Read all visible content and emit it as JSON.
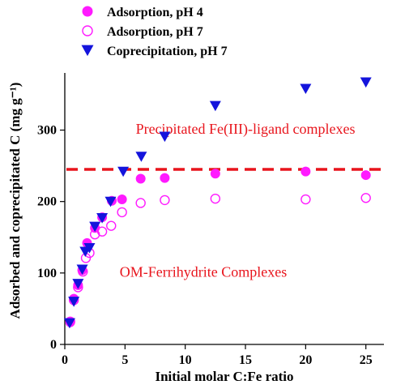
{
  "chart_data": {
    "type": "scatter",
    "xlabel": "Initial molar C:Fe ratio",
    "ylabel": "Adsorbed and coprecipitated C (mg g⁻¹)",
    "xlim": [
      0,
      26.5
    ],
    "ylim": [
      0,
      380
    ],
    "x_ticks": [
      0,
      5,
      10,
      15,
      20,
      25
    ],
    "y_ticks": [
      0,
      100,
      200,
      300
    ],
    "grid": false,
    "legend_position": "top-left",
    "series": [
      {
        "name": "Adsorption, pH 4",
        "marker": "filled-circle",
        "color": "#ff1aff",
        "points": [
          [
            0.45,
            31
          ],
          [
            0.75,
            64
          ],
          [
            1.1,
            83
          ],
          [
            1.45,
            104
          ],
          [
            1.85,
            142
          ],
          [
            2.5,
            163
          ],
          [
            3.1,
            178
          ],
          [
            3.9,
            201
          ],
          [
            4.75,
            203
          ],
          [
            6.3,
            232
          ],
          [
            8.3,
            233
          ],
          [
            12.5,
            239
          ],
          [
            20,
            242
          ],
          [
            25,
            237
          ]
        ]
      },
      {
        "name": "Adsorption, pH 7",
        "marker": "open-circle",
        "color": "#ff1aff",
        "points": [
          [
            0.45,
            32
          ],
          [
            0.75,
            62
          ],
          [
            1.1,
            80
          ],
          [
            1.5,
            102
          ],
          [
            1.75,
            121
          ],
          [
            2.05,
            128
          ],
          [
            2.5,
            154
          ],
          [
            3.1,
            158
          ],
          [
            3.85,
            166
          ],
          [
            4.75,
            185
          ],
          [
            6.3,
            198
          ],
          [
            8.3,
            202
          ],
          [
            12.5,
            204
          ],
          [
            20,
            203
          ],
          [
            25,
            205
          ]
        ]
      },
      {
        "name": "Coprecipitation, pH 7",
        "marker": "triangle-down",
        "color": "#1414dc",
        "points": [
          [
            0.4,
            30
          ],
          [
            0.75,
            60
          ],
          [
            1.1,
            85
          ],
          [
            1.45,
            105
          ],
          [
            1.7,
            130
          ],
          [
            2.05,
            135
          ],
          [
            2.5,
            165
          ],
          [
            3.1,
            177
          ],
          [
            3.8,
            200
          ],
          [
            4.85,
            242
          ],
          [
            6.35,
            263
          ],
          [
            8.3,
            291
          ],
          [
            12.5,
            334
          ],
          [
            20,
            358
          ],
          [
            25,
            367
          ]
        ]
      }
    ],
    "threshold_line": {
      "y": 245,
      "color": "#e8141c",
      "style": "dashed"
    },
    "annotations": [
      {
        "text": "Precipitated Fe(III)-ligand complexes",
        "x": 15.0,
        "y": 295
      },
      {
        "text": "OM-Ferrihydrite Complexes",
        "x": 11.5,
        "y": 95
      }
    ]
  }
}
